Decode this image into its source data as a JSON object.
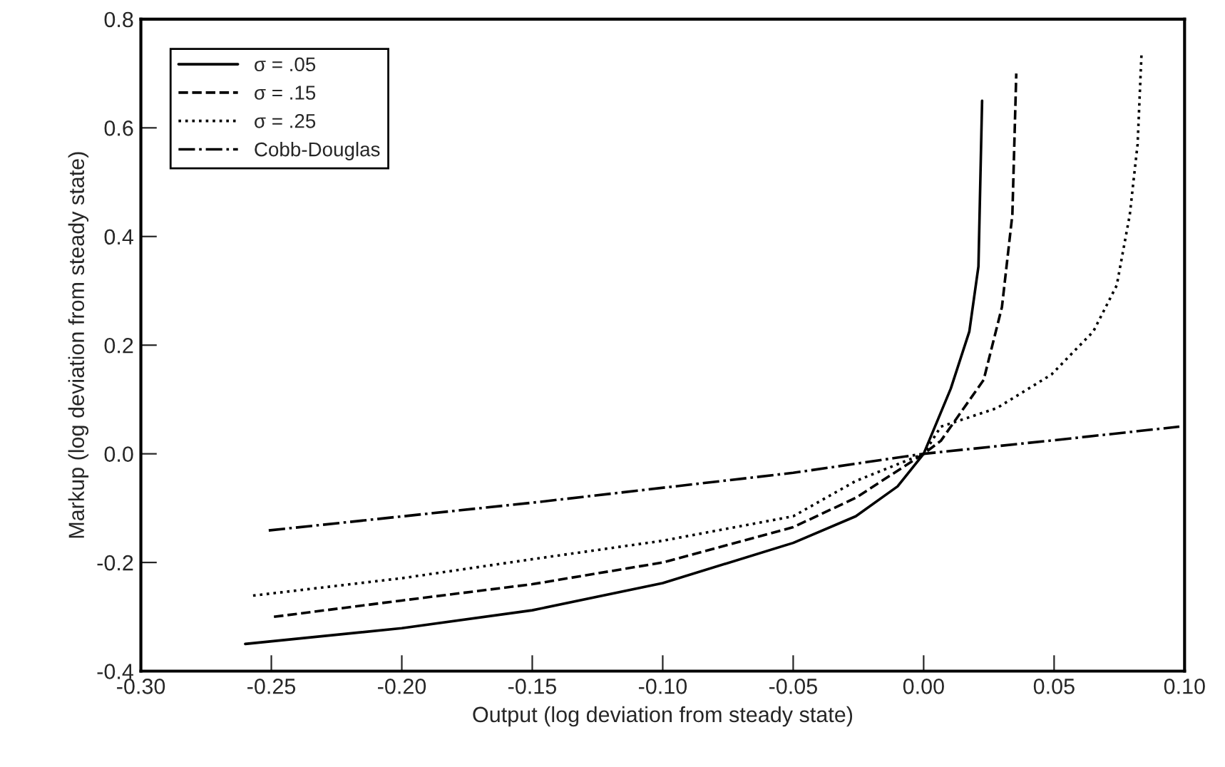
{
  "chart_data": {
    "type": "line",
    "xlabel": "Output (log deviation from steady state)",
    "ylabel": "Markup (log deviation from steady state)",
    "xlim": [
      -0.3,
      0.1
    ],
    "xticks": [
      {
        "value": -0.3,
        "label": "-0.30"
      },
      {
        "value": -0.25,
        "label": "-0.25"
      },
      {
        "value": -0.2,
        "label": "-0.20"
      },
      {
        "value": -0.15,
        "label": "-0.15"
      },
      {
        "value": -0.1,
        "label": "-0.10"
      },
      {
        "value": -0.05,
        "label": "-0.05"
      },
      {
        "value": 0,
        "label": "0.00"
      },
      {
        "value": 0.05,
        "label": "0.05"
      },
      {
        "value": 0.1,
        "label": "0.10"
      }
    ],
    "ylim": [
      -0.4,
      0.8
    ],
    "yticks": [
      {
        "value": -0.4,
        "label": "-0.4"
      },
      {
        "value": -0.2,
        "label": "-0.2"
      },
      {
        "value": 0,
        "label": "0.0"
      },
      {
        "value": 0.2,
        "label": "0.2"
      },
      {
        "value": 0.4,
        "label": "0.4"
      },
      {
        "value": 0.6,
        "label": "0.6"
      },
      {
        "value": 0.8,
        "label": "0.8"
      }
    ],
    "grid": false,
    "legend": "top left",
    "marker": "none",
    "series": [
      {
        "name": "σ = .05",
        "color": "#000000",
        "line_style": "solid",
        "x": [
          -0.26,
          -0.2,
          -0.15,
          -0.1,
          -0.05,
          -0.026,
          -0.01,
          0,
          0.0104,
          0.0175,
          0.021,
          0.0224
        ],
        "values": [
          -0.35,
          -0.321,
          -0.288,
          -0.238,
          -0.164,
          -0.115,
          -0.06,
          0,
          0.12,
          0.225,
          0.345,
          0.65
        ]
      },
      {
        "name": "σ = .15",
        "color": "#000000",
        "line_style": "dashed",
        "x": [
          -0.249,
          -0.2,
          -0.15,
          -0.1,
          -0.05,
          -0.026,
          0,
          0.0066,
          0.023,
          0.03,
          0.034,
          0.0355
        ],
        "values": [
          -0.3,
          -0.27,
          -0.24,
          -0.2,
          -0.135,
          -0.081,
          0,
          0.024,
          0.136,
          0.27,
          0.44,
          0.7
        ]
      },
      {
        "name": "σ = .25",
        "color": "#000000",
        "line_style": "dotted",
        "x": [
          -0.257,
          -0.2,
          -0.15,
          -0.1,
          -0.05,
          -0.026,
          0,
          0.0066,
          0.028,
          0.049,
          0.065,
          0.074,
          0.079,
          0.082,
          0.0835
        ],
        "values": [
          -0.261,
          -0.229,
          -0.194,
          -0.16,
          -0.115,
          -0.05,
          0,
          0.05,
          0.084,
          0.146,
          0.225,
          0.31,
          0.44,
          0.57,
          0.737
        ]
      },
      {
        "name": "Cobb-Douglas",
        "color": "#000000",
        "line_style": "dashdot",
        "x": [
          -0.251,
          -0.15,
          -0.05,
          0,
          0.05,
          0.098
        ],
        "values": [
          -0.141,
          -0.09,
          -0.035,
          0,
          0.025,
          0.05
        ]
      }
    ]
  }
}
